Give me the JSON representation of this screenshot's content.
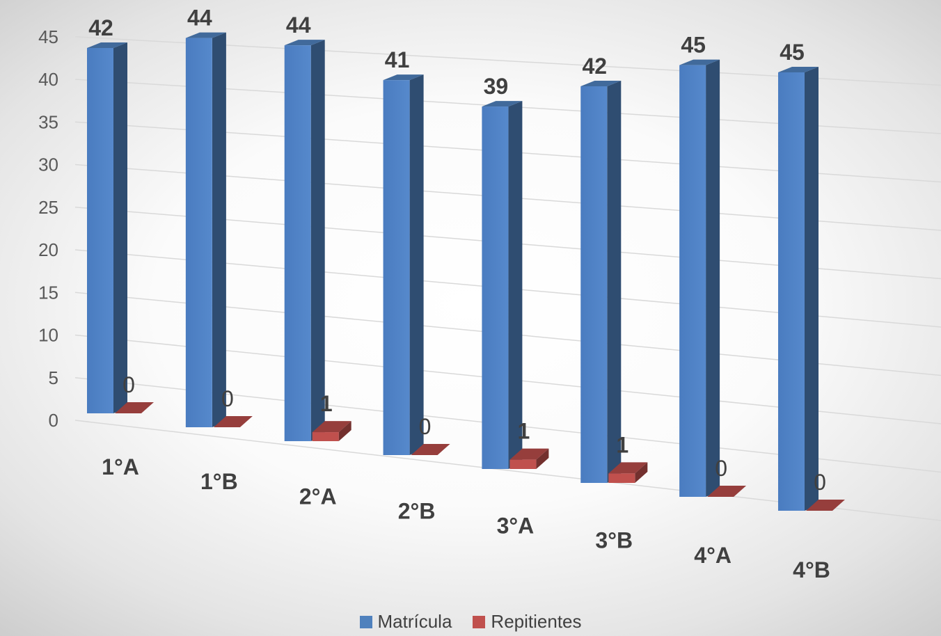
{
  "chart_data": {
    "type": "bar",
    "title": "",
    "xlabel": "",
    "ylabel": "",
    "ylim": [
      0,
      45
    ],
    "yticks": [
      0,
      5,
      10,
      15,
      20,
      25,
      30,
      35,
      40,
      45
    ],
    "grid": true,
    "view": "3d-perspective",
    "legend_position": "bottom",
    "categories": [
      "1°A",
      "1°B",
      "2°A",
      "2°B",
      "3°A",
      "3°B",
      "4°A",
      "4°B"
    ],
    "series": [
      {
        "name": "Matrícula",
        "color": "#4f81bd",
        "values": [
          42,
          44,
          44,
          41,
          39,
          42,
          45,
          45
        ]
      },
      {
        "name": "Repitientes",
        "color": "#c0504d",
        "values": [
          0,
          0,
          1,
          0,
          1,
          1,
          0,
          0
        ]
      }
    ]
  }
}
